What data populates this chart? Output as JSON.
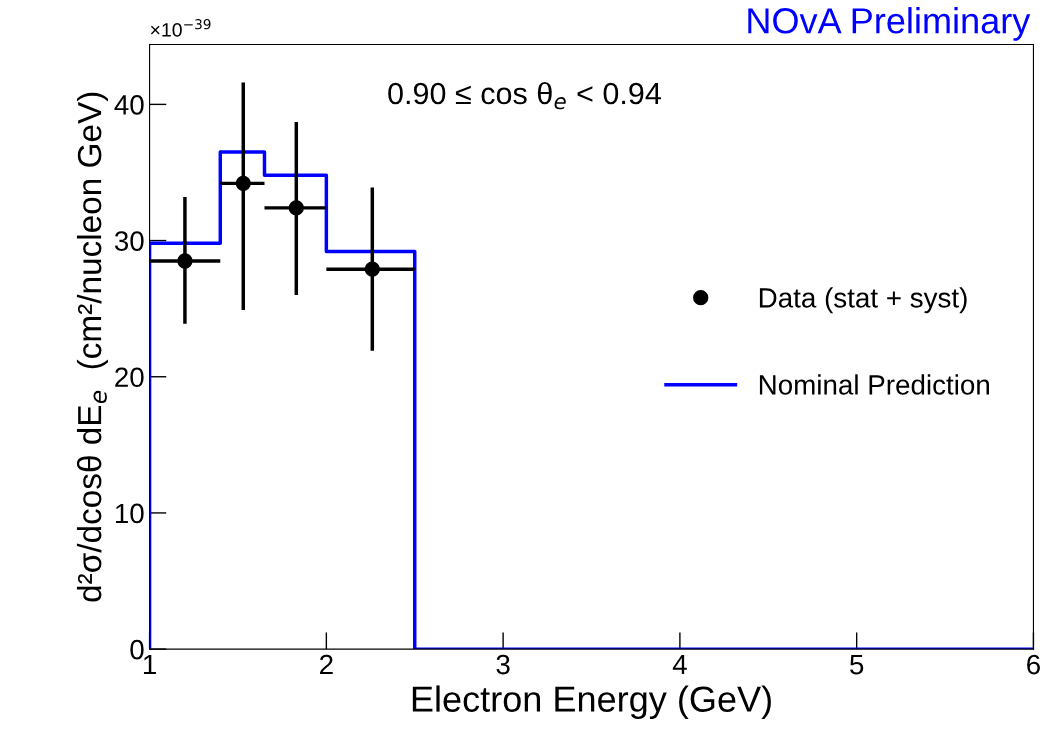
{
  "chart_data": {
    "type": "scatter",
    "title": "NOvA Preliminary",
    "xlabel": "Electron Energy (GeV)",
    "ylabel": "d²σ/dcosθ dE$_{e}$  (cm²/nucleon GeV)",
    "annotations": [
      "×10$^{−39}$",
      "0.90 ≤ cos θ$_{e}$ < 0.94"
    ],
    "xlim": [
      1,
      6
    ],
    "xticks": [
      1,
      2,
      3,
      4,
      5,
      6
    ],
    "ylim": [
      0,
      44.4
    ],
    "yticks": [
      0,
      10,
      20,
      30,
      40
    ],
    "grid": false,
    "legend": "right",
    "series": [
      {
        "name": "Data (stat + syst)",
        "marker": "circle",
        "color": "#000000",
        "x": [
          1.2,
          1.53,
          1.83,
          2.26
        ],
        "values": [
          28.5,
          34.2,
          32.4,
          27.9
        ],
        "errors": [
          [
            23.9,
            33.2
          ],
          [
            24.9,
            41.6
          ],
          [
            26.0,
            38.7
          ],
          [
            21.9,
            33.9
          ]
        ],
        "xerrors": [
          [
            1.0,
            1.4
          ],
          [
            1.4,
            1.65
          ],
          [
            1.65,
            2.0
          ],
          [
            2.0,
            2.5
          ]
        ]
      },
      {
        "name": "Nominal Prediction",
        "type": "step",
        "color": "#0000ff",
        "x": [
          1,
          1,
          1.4,
          1.65,
          2.0,
          2.5,
          6
        ],
        "values": [
          0,
          29.8,
          36.5,
          34.8,
          29.2,
          0,
          0
        ]
      }
    ]
  }
}
